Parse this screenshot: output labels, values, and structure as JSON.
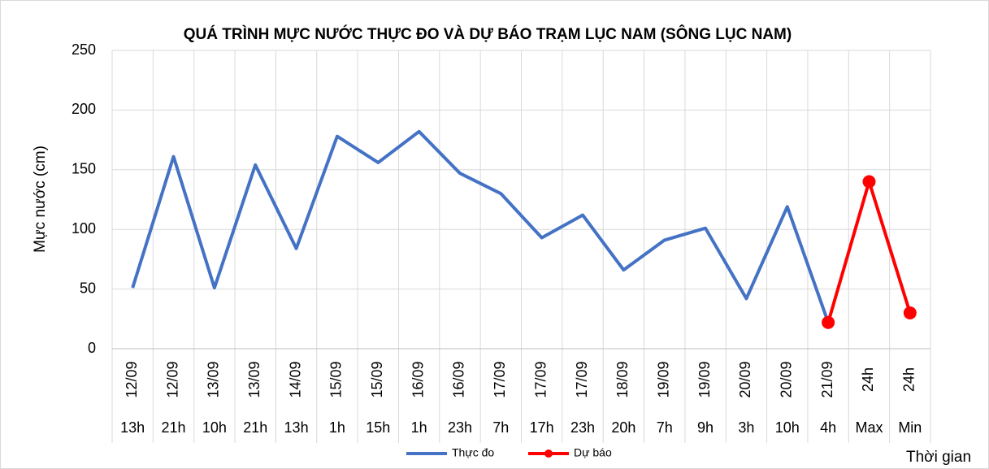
{
  "chart_data": {
    "type": "line",
    "title": "QUÁ TRÌNH MỰC NƯỚC THỰC ĐO VÀ DỰ BÁO TRẠM LỤC NAM (SÔNG LỤC NAM)",
    "y_label": "Mực nước (cm)",
    "x_label": "Thời gian",
    "category_groups": [
      "12/09",
      "12/09",
      "13/09",
      "13/09",
      "14/09",
      "15/09",
      "15/09",
      "16/09",
      "16/09",
      "17/09",
      "17/09",
      "17/09",
      "18/09",
      "19/09",
      "19/09",
      "20/09",
      "20/09",
      "21/09",
      "24h",
      "24h"
    ],
    "categories": [
      "13h",
      "21h",
      "10h",
      "21h",
      "13h",
      "1h",
      "15h",
      "1h",
      "23h",
      "7h",
      "17h",
      "23h",
      "20h",
      "7h",
      "9h",
      "3h",
      "10h",
      "4h",
      "Max",
      "Min"
    ],
    "series": [
      {
        "name": "Thực đo",
        "color": "#4472c4",
        "markers": false,
        "values": [
          51,
          161,
          51,
          154,
          84,
          178,
          156,
          182,
          147,
          130,
          93,
          112,
          66,
          91,
          101,
          42,
          119,
          22,
          null,
          null
        ]
      },
      {
        "name": "Dự báo",
        "color": "#ff0000",
        "markers": true,
        "values": [
          null,
          null,
          null,
          null,
          null,
          null,
          null,
          null,
          null,
          null,
          null,
          null,
          null,
          null,
          null,
          null,
          null,
          22,
          140,
          30
        ]
      }
    ],
    "ylim": [
      0,
      250
    ],
    "yticks": [
      0,
      50,
      100,
      150,
      200,
      250
    ],
    "grid": true,
    "legend": "bottom"
  }
}
